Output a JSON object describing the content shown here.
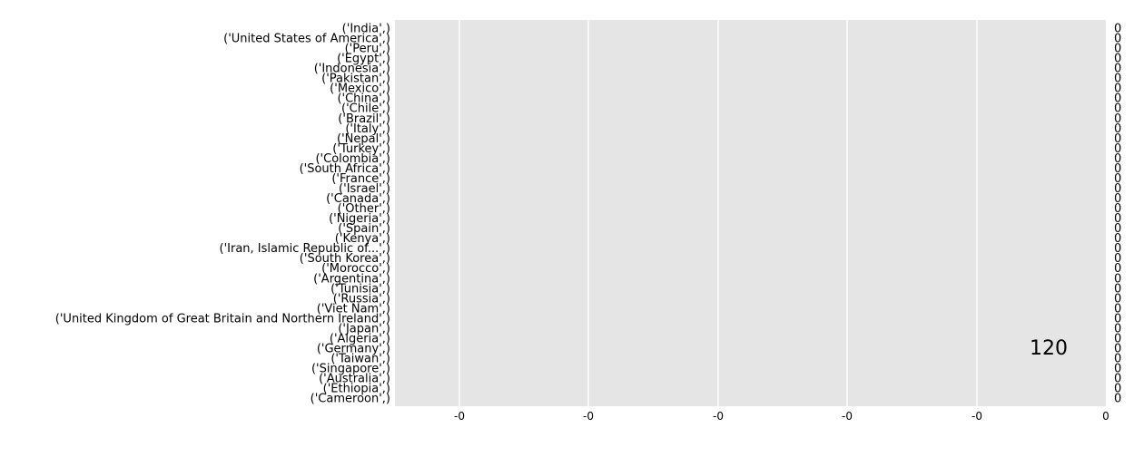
{
  "chart_data": {
    "type": "bar",
    "orientation": "horizontal",
    "categories": [
      "('India',)",
      "('United States of America',)",
      "('Peru',)",
      "('Egypt',)",
      "('Indonesia',)",
      "('Pakistan',)",
      "('Mexico',)",
      "('China',)",
      "('Chile',)",
      "('Brazil',)",
      "('Italy',)",
      "('Nepal',)",
      "('Turkey',)",
      "('Colombia',)",
      "('South Africa',)",
      "('France',)",
      "('Israel',)",
      "('Canada',)",
      "('Other',)",
      "('Nigeria',)",
      "('Spain',)",
      "('Kenya',)",
      "('Iran, Islamic Republic of...',)",
      "('South Korea',)",
      "('Morocco',)",
      "('Argentina',)",
      "('Tunisia',)",
      "('Russia',)",
      "('Viet Nam',)",
      "('United Kingdom of Great Britain and Northern Ireland',)",
      "('Japan',)",
      "('Algeria',)",
      "('Germany',)",
      "('Taiwan',)",
      "('Singapore',)",
      "('Australia',)",
      "('Ethiopia',)",
      "('Cameroon',)"
    ],
    "values": [
      0,
      0,
      0,
      0,
      0,
      0,
      0,
      0,
      0,
      0,
      0,
      0,
      0,
      0,
      0,
      0,
      0,
      0,
      0,
      0,
      0,
      0,
      0,
      0,
      0,
      0,
      0,
      0,
      0,
      0,
      0,
      0,
      0,
      0,
      0,
      0,
      0,
      0
    ],
    "value_labels": [
      "0",
      "0",
      "0",
      "0",
      "0",
      "0",
      "0",
      "0",
      "0",
      "0",
      "0",
      "0",
      "0",
      "0",
      "0",
      "0",
      "0",
      "0",
      "0",
      "0",
      "0",
      "0",
      "0",
      "0",
      "0",
      "0",
      "0",
      "0",
      "0",
      "0",
      "0",
      "0",
      "0",
      "0",
      "0",
      "0",
      "0",
      "0"
    ],
    "x_ticks": [
      "-0",
      "-0",
      "-0",
      "-0",
      "-0",
      "0"
    ],
    "annotation": "120",
    "title": "",
    "xlabel": "",
    "ylabel": "",
    "grid": true,
    "background": "#e5e5e5",
    "grid_color": "#ffffff"
  }
}
